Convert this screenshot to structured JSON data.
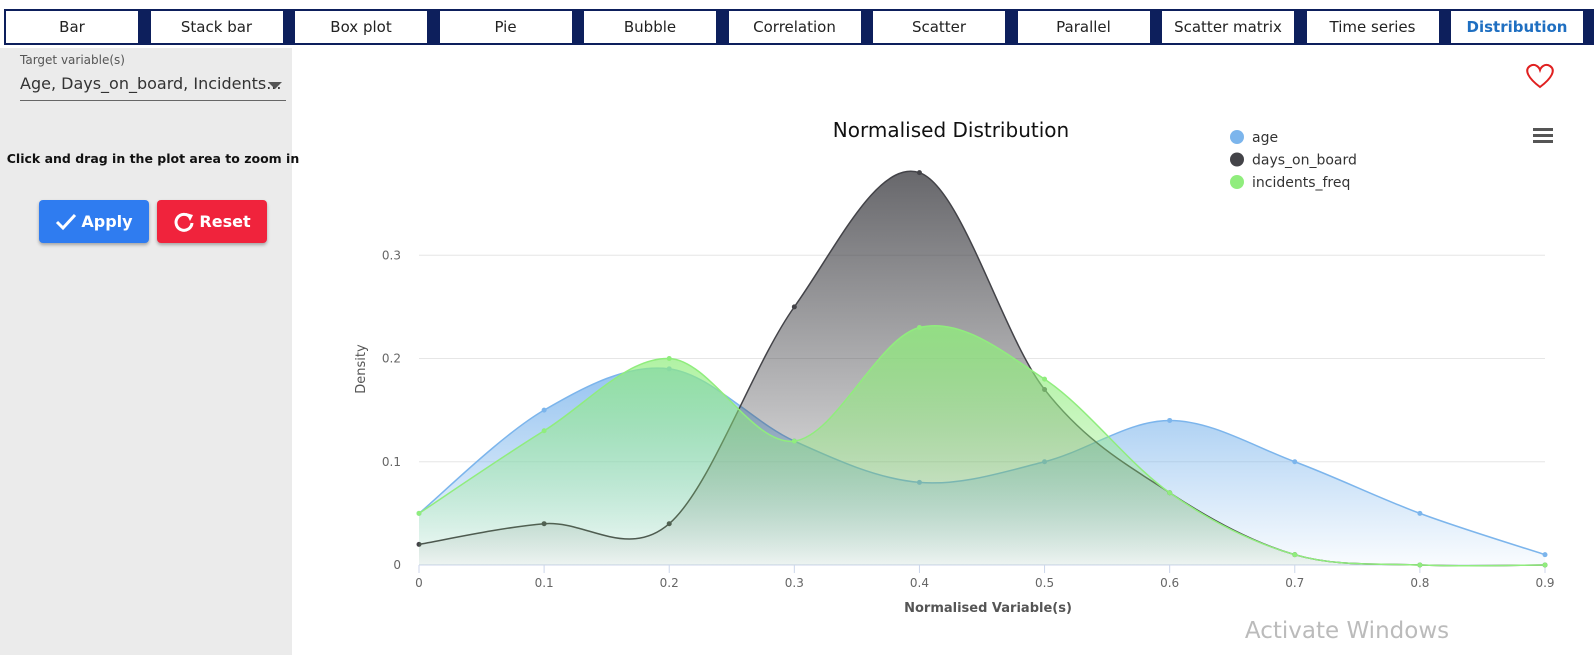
{
  "tabs": [
    "Bar",
    "Stack bar",
    "Box plot",
    "Pie",
    "Bubble",
    "Correlation",
    "Scatter",
    "Parallel",
    "Scatter matrix",
    "Time series",
    "Distribution"
  ],
  "active_tab": "Distribution",
  "sidebar": {
    "target_label": "Target variable(s)",
    "target_value": "Age, Days_on_board, Incidents...",
    "hint": "Click and drag in the plot area to zoom in",
    "apply": "Apply",
    "reset": "Reset"
  },
  "watermark": "Activate Windows",
  "chart_data": {
    "type": "areaspline",
    "title": "Normalised Distribution",
    "x_label": "Normalised Variable(s)",
    "y_label": "Density",
    "x": [
      0,
      0.1,
      0.2,
      0.3,
      0.4,
      0.5,
      0.6,
      0.7,
      0.8,
      0.9
    ],
    "series": [
      {
        "name": "age",
        "color": "#7cb5ec",
        "values": [
          0.05,
          0.15,
          0.19,
          0.12,
          0.08,
          0.1,
          0.14,
          0.1,
          0.05,
          0.01
        ]
      },
      {
        "name": "days_on_board",
        "color": "#434348",
        "values": [
          0.02,
          0.04,
          0.04,
          0.25,
          0.38,
          0.17,
          0.07,
          0.01,
          0,
          0
        ]
      },
      {
        "name": "incidents_freq",
        "color": "#90ed7d",
        "values": [
          0.05,
          0.13,
          0.2,
          0.12,
          0.23,
          0.18,
          0.07,
          0.01,
          0,
          0
        ]
      }
    ],
    "xlim": [
      0,
      0.9
    ],
    "xticks": [
      0,
      0.1,
      0.2,
      0.3,
      0.4,
      0.5,
      0.6,
      0.7,
      0.8,
      0.9
    ],
    "ylim": [
      0,
      0.4
    ],
    "yticks": [
      0,
      0.1,
      0.2,
      0.3
    ],
    "grid": true,
    "legend": "top-right"
  }
}
